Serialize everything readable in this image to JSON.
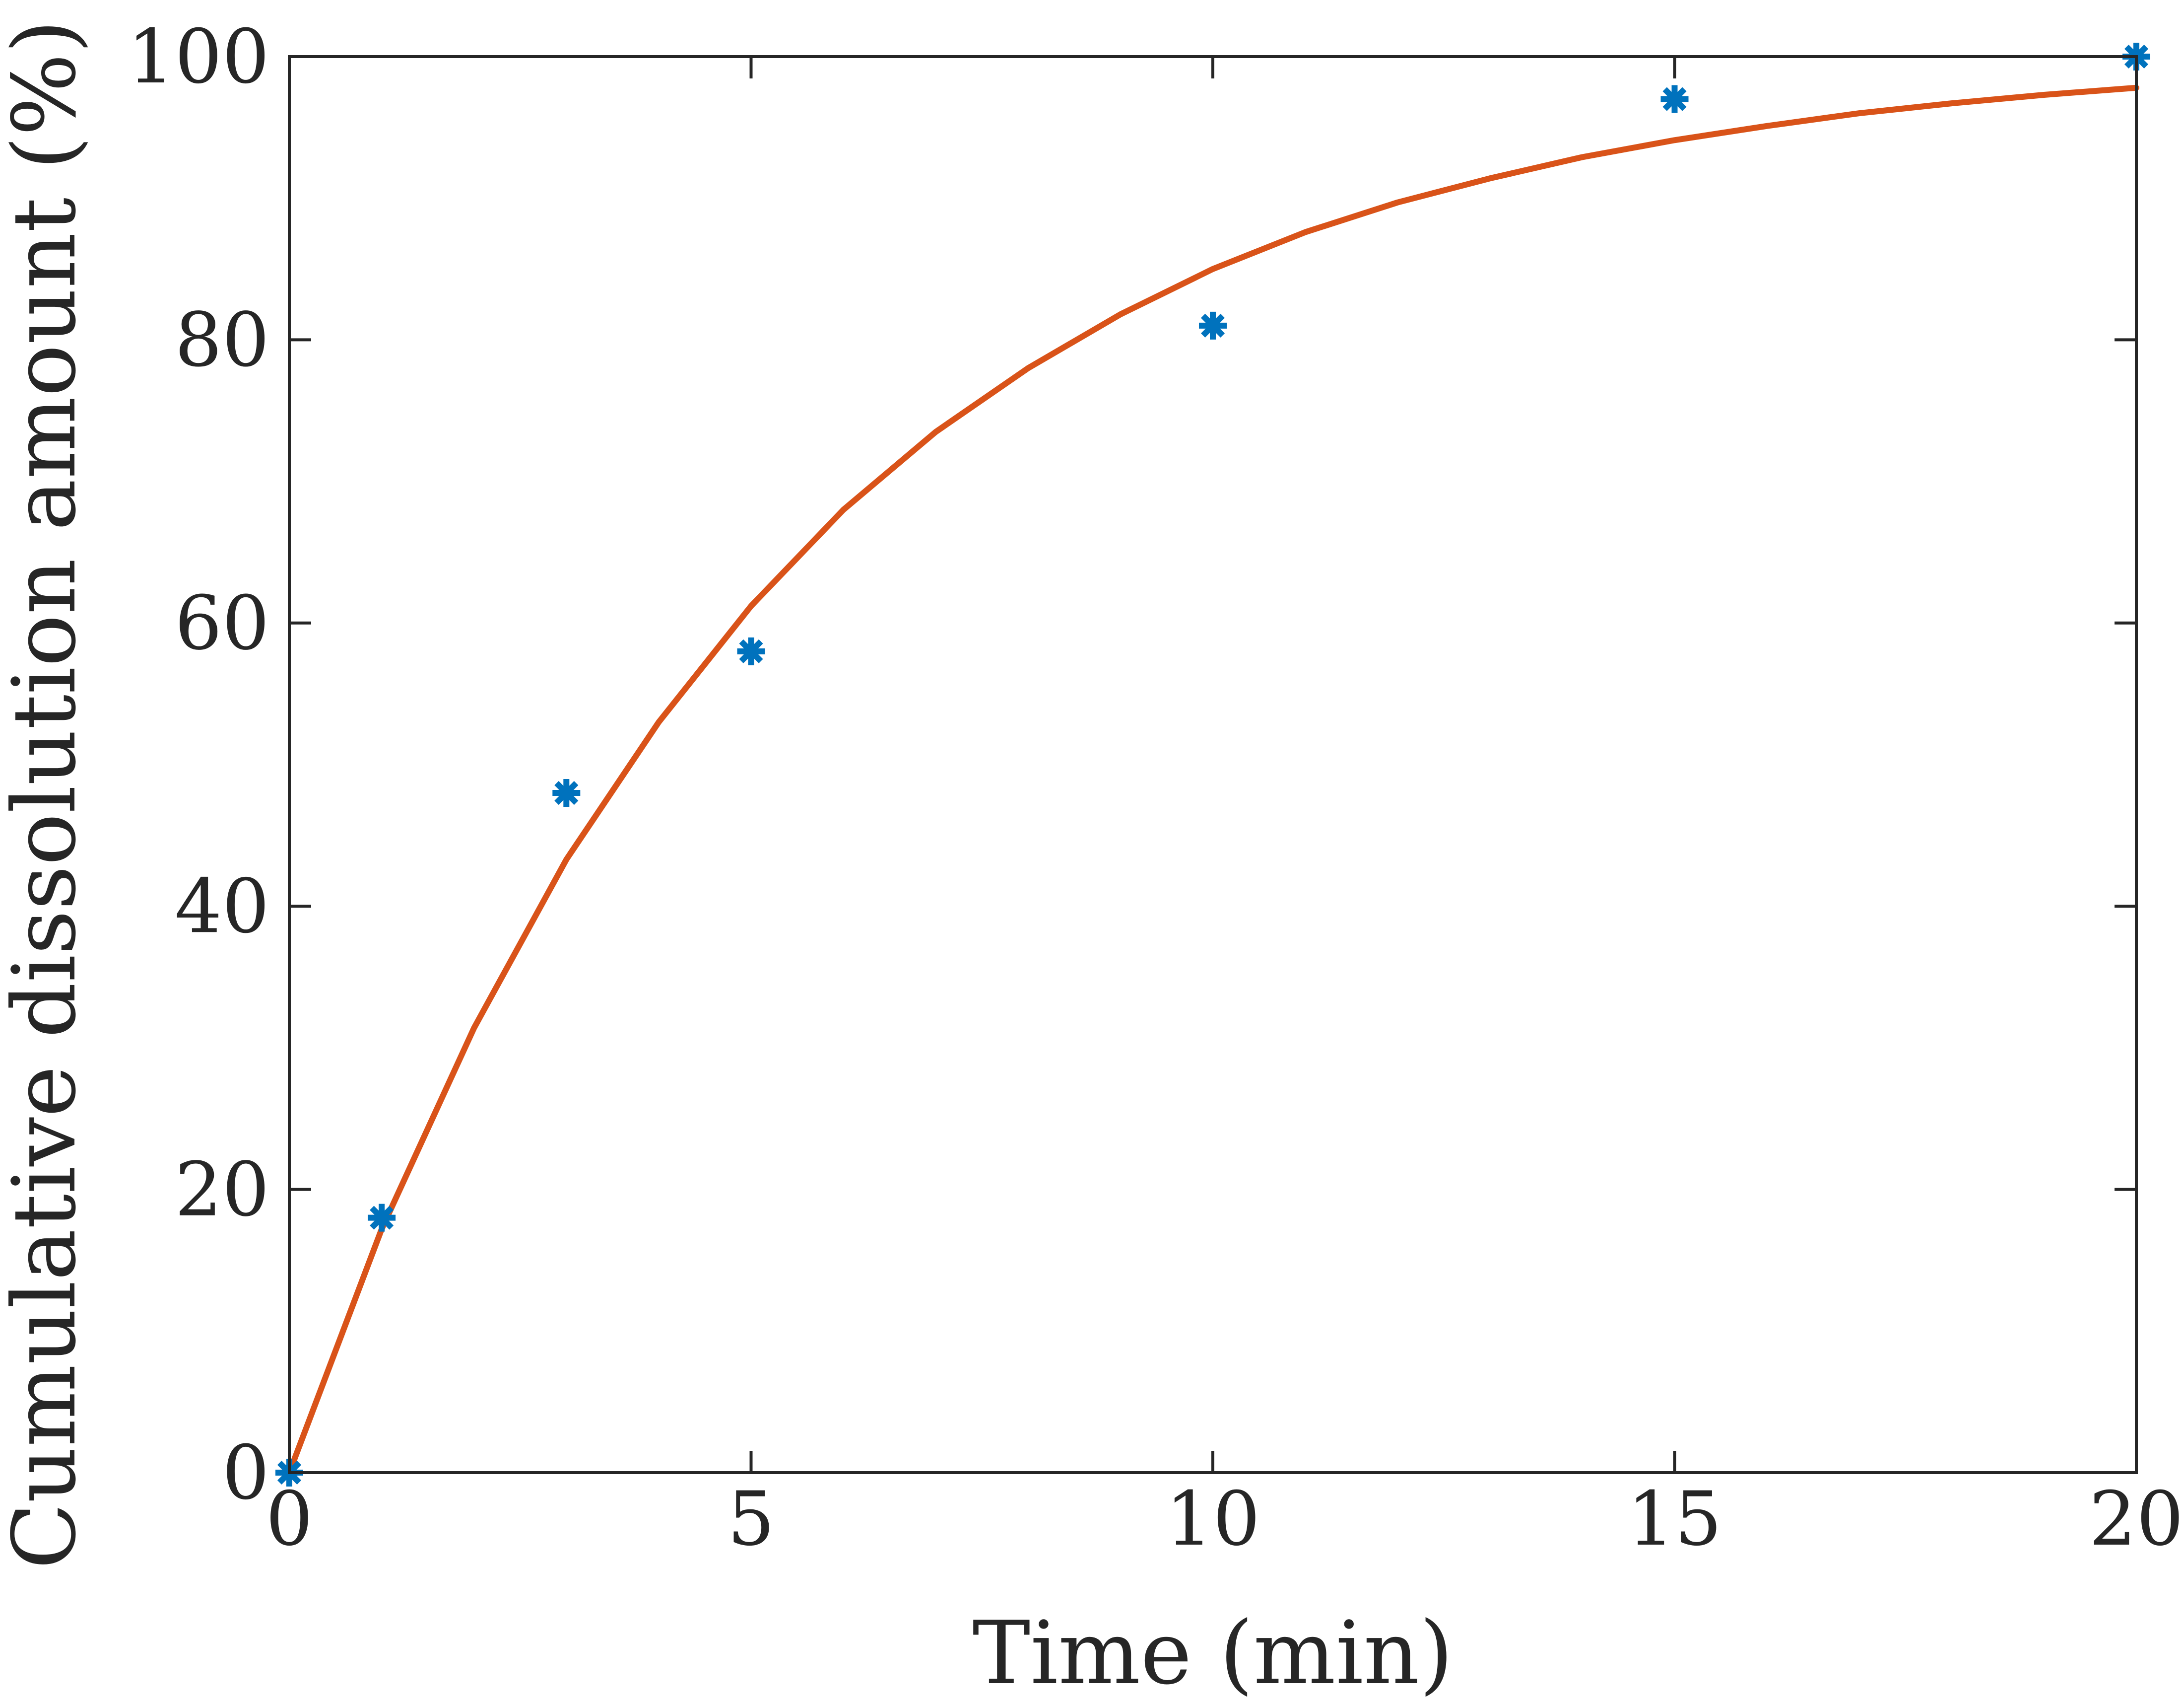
{
  "chart_data": {
    "type": "scatter",
    "title": "",
    "xlabel": "Time (min)",
    "ylabel": "Cumulative dissolution amount (%)",
    "xlim": [
      0,
      20
    ],
    "ylim": [
      0,
      100
    ],
    "x_ticks": [
      0,
      5,
      10,
      15,
      20
    ],
    "y_ticks": [
      0,
      20,
      40,
      60,
      80,
      100
    ],
    "grid": false,
    "legend": "none",
    "series": [
      {
        "type": "scatter",
        "marker": "asterisk",
        "color": "#0072BD",
        "x": [
          0,
          1,
          3,
          5,
          10,
          15,
          20
        ],
        "y": [
          0,
          18,
          48,
          58,
          81,
          97,
          100
        ]
      },
      {
        "type": "line",
        "color": "#D95319",
        "x": [
          0,
          1,
          2,
          3,
          4,
          5,
          6,
          7,
          8,
          9,
          10,
          11,
          12,
          13,
          14,
          15,
          16,
          17,
          18,
          19,
          20
        ],
        "y": [
          0,
          17.2,
          31.4,
          43.3,
          53.0,
          61.2,
          68.0,
          73.5,
          78.0,
          81.8,
          85.0,
          87.6,
          89.7,
          91.4,
          92.9,
          94.1,
          95.1,
          96.0,
          96.7,
          97.3,
          97.8
        ]
      }
    ]
  }
}
